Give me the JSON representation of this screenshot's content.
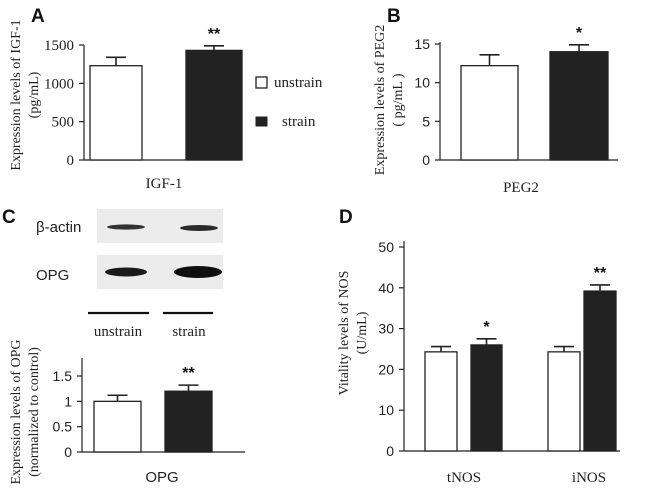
{
  "colors": {
    "unstrain": "#ffffff",
    "strain": "#222222",
    "axis": "#222222"
  },
  "legend": {
    "items": [
      "unstrain",
      "strain"
    ]
  },
  "panels": {
    "A": {
      "letter": "A",
      "ylabel_line1": "Expression levels of IGF-1",
      "ylabel_line2": "(pg/mL)",
      "xlabel": "IGF-1",
      "ticks": [
        "0",
        "500",
        "1000",
        "1500"
      ]
    },
    "B": {
      "letter": "B",
      "ylabel_line1": "Expression levels of  PEG2",
      "ylabel_line2": "( pg/mL )",
      "xlabel": "PEG2",
      "ticks": [
        "0",
        "5",
        "10",
        "15"
      ]
    },
    "C": {
      "letter": "C",
      "blot_labels": [
        "β-actin",
        "OPG"
      ],
      "lane_labels": [
        "unstrain",
        "strain"
      ],
      "ylabel_line1": "Expression levels of OPG",
      "ylabel_line2": "(normalized to control)",
      "xlabel": "OPG",
      "ticks": [
        "0",
        "0.5",
        "1",
        "1.5"
      ]
    },
    "D": {
      "letter": "D",
      "ylabel_line1": "Vitality levels of NOS",
      "ylabel_line2": "(U/mL)",
      "ticks": [
        "0",
        "10",
        "20",
        "30",
        "40",
        "50"
      ],
      "categories": [
        "tNOS",
        "iNOS"
      ]
    }
  },
  "chart_data": [
    {
      "panel": "A",
      "type": "bar",
      "categories": [
        "IGF-1"
      ],
      "series": [
        {
          "name": "unstrain",
          "values": [
            1230
          ],
          "errors": [
            110
          ]
        },
        {
          "name": "strain",
          "values": [
            1430
          ],
          "errors": [
            60
          ]
        }
      ],
      "ylim": [
        0,
        1500
      ],
      "ylabel": "Expression levels of IGF-1 (pg/mL)",
      "xlabel": "IGF-1",
      "significance": [
        "",
        "**"
      ]
    },
    {
      "panel": "B",
      "type": "bar",
      "categories": [
        "PEG2"
      ],
      "series": [
        {
          "name": "unstrain",
          "values": [
            12.2
          ],
          "errors": [
            1.4
          ]
        },
        {
          "name": "strain",
          "values": [
            14.0
          ],
          "errors": [
            0.9
          ]
        }
      ],
      "ylim": [
        0,
        15
      ],
      "ylabel": "Expression levels of  PEG2 ( pg/mL )",
      "xlabel": "PEG2",
      "significance": [
        "",
        "*"
      ]
    },
    {
      "panel": "C",
      "type": "bar",
      "categories": [
        "OPG"
      ],
      "series": [
        {
          "name": "unstrain",
          "values": [
            1.0
          ],
          "errors": [
            0.12
          ]
        },
        {
          "name": "strain",
          "values": [
            1.2
          ],
          "errors": [
            0.12
          ]
        }
      ],
      "ylim": [
        0,
        1.5
      ],
      "ylabel": "Expression levels of OPG (normalized to control)",
      "xlabel": "OPG",
      "significance": [
        "",
        "**"
      ]
    },
    {
      "panel": "D",
      "type": "bar",
      "categories": [
        "tNOS",
        "iNOS"
      ],
      "series": [
        {
          "name": "unstrain",
          "values": [
            24.3,
            24.3
          ],
          "errors": [
            1.3,
            1.3
          ]
        },
        {
          "name": "strain",
          "values": [
            26.0,
            39.2
          ],
          "errors": [
            1.5,
            1.5
          ]
        }
      ],
      "ylim": [
        0,
        50
      ],
      "ylabel": "Vitality levels of NOS (U/mL)",
      "significance": [
        [
          "",
          "*"
        ],
        [
          "",
          "**"
        ]
      ]
    }
  ]
}
